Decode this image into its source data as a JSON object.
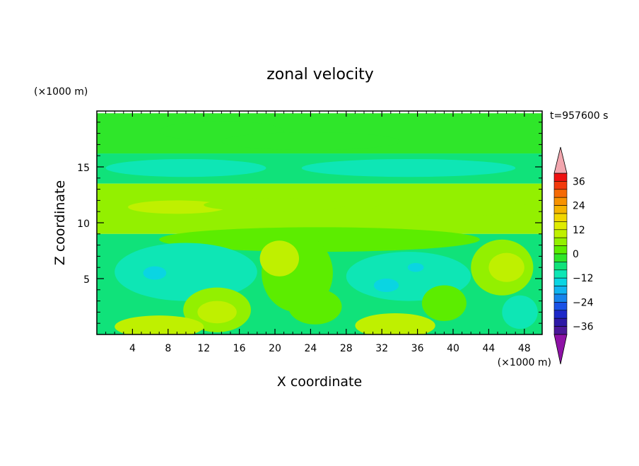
{
  "chart_data": {
    "type": "heatmap",
    "title": "zonal velocity",
    "xlabel": "X coordinate",
    "ylabel": "Z coordinate",
    "x_unit": "(×1000 m)",
    "y_unit": "(×1000 m)",
    "time_label": "t=957600 s",
    "xlim": [
      0,
      50
    ],
    "ylim": [
      0,
      20
    ],
    "x_ticks": [
      4,
      8,
      12,
      16,
      20,
      24,
      28,
      32,
      36,
      40,
      44,
      48
    ],
    "y_ticks": [
      5,
      10,
      15
    ],
    "colorbar": {
      "tick_labels": [
        "36",
        "24",
        "12",
        "0",
        "−12",
        "−24",
        "−36"
      ],
      "tick_values": [
        36,
        24,
        12,
        0,
        -12,
        -24,
        -36
      ],
      "levels_desc": [
        40,
        36,
        32,
        28,
        24,
        20,
        16,
        12,
        8,
        4,
        0,
        -4,
        -8,
        -12,
        -16,
        -20,
        -24,
        -28,
        -32,
        -36,
        -40
      ],
      "colors_desc": [
        "#ee1111",
        "#f23a0c",
        "#f56a05",
        "#f79200",
        "#f5b400",
        "#f1d600",
        "#dfeb00",
        "#bff000",
        "#93f000",
        "#5ced00",
        "#2fe62a",
        "#10e27a",
        "#0ee6b5",
        "#0ad5e2",
        "#10b4f0",
        "#1684ec",
        "#1a52e6",
        "#1d28c8",
        "#2d19a6",
        "#4a1798"
      ],
      "overflow_high_color": "#f2a6ae",
      "overflow_low_color": "#8e12a6"
    },
    "regions": [
      {
        "shape": "band",
        "z_range": [
          16.2,
          19.8
        ],
        "value": 0
      },
      {
        "shape": "band",
        "z_range": [
          13.5,
          16.2
        ],
        "value": -6
      },
      {
        "shape": "band",
        "z_range": [
          9.0,
          13.5
        ],
        "value": 6
      },
      {
        "shape": "band",
        "z_range": [
          0,
          9.0
        ],
        "value": -4
      },
      {
        "shape": "blob",
        "center": [
          14,
          18.2
        ],
        "radii": [
          7,
          0.9
        ],
        "value": -2
      },
      {
        "shape": "blob",
        "center": [
          24,
          17.3
        ],
        "radii": [
          10,
          0.8
        ],
        "value": -2
      },
      {
        "shape": "blob",
        "center": [
          10,
          14.9
        ],
        "radii": [
          9,
          0.8
        ],
        "value": -8
      },
      {
        "shape": "blob",
        "center": [
          35,
          14.9
        ],
        "radii": [
          12,
          0.8
        ],
        "value": -8
      },
      {
        "shape": "blob",
        "center": [
          9,
          11.4
        ],
        "radii": [
          5.5,
          0.6
        ],
        "value": 10
      },
      {
        "shape": "blob",
        "center": [
          20,
          11.6
        ],
        "radii": [
          8,
          0.6
        ],
        "value": 8
      },
      {
        "shape": "blob",
        "center": [
          40,
          11.3
        ],
        "radii": [
          9,
          0.7
        ],
        "value": 8
      },
      {
        "shape": "blob",
        "center": [
          25,
          8.5
        ],
        "radii": [
          18,
          1.1
        ],
        "value": 2
      },
      {
        "shape": "blob",
        "center": [
          10,
          5.6
        ],
        "radii": [
          8,
          2.6
        ],
        "value": -10
      },
      {
        "shape": "blob",
        "center": [
          6.5,
          5.5
        ],
        "radii": [
          1.3,
          0.6
        ],
        "value": -14
      },
      {
        "shape": "blob",
        "center": [
          35,
          5.2
        ],
        "radii": [
          7,
          2.2
        ],
        "value": -10
      },
      {
        "shape": "blob",
        "center": [
          32.5,
          4.4
        ],
        "radii": [
          1.4,
          0.6
        ],
        "value": -14
      },
      {
        "shape": "blob",
        "center": [
          35.8,
          6.0
        ],
        "radii": [
          0.9,
          0.4
        ],
        "value": -14
      },
      {
        "shape": "blob",
        "center": [
          22.5,
          5.5
        ],
        "radii": [
          4,
          3.5
        ],
        "value": 4
      },
      {
        "shape": "blob",
        "center": [
          20.5,
          6.8
        ],
        "radii": [
          2.2,
          1.6
        ],
        "value": 10
      },
      {
        "shape": "blob",
        "center": [
          45.5,
          6.0
        ],
        "radii": [
          3.5,
          2.5
        ],
        "value": 8
      },
      {
        "shape": "blob",
        "center": [
          46,
          6.0
        ],
        "radii": [
          2.0,
          1.3
        ],
        "value": 11
      },
      {
        "shape": "blob",
        "center": [
          13.5,
          2.2
        ],
        "radii": [
          3.8,
          2.0
        ],
        "value": 8
      },
      {
        "shape": "blob",
        "center": [
          13.5,
          2.0
        ],
        "radii": [
          2.2,
          1.0
        ],
        "value": 12
      },
      {
        "shape": "blob",
        "center": [
          7,
          0.7
        ],
        "radii": [
          5,
          1.0
        ],
        "value": 10
      },
      {
        "shape": "blob",
        "center": [
          33.5,
          0.8
        ],
        "radii": [
          4.5,
          1.1
        ],
        "value": 10
      },
      {
        "shape": "blob",
        "center": [
          24.5,
          2.5
        ],
        "radii": [
          3,
          1.6
        ],
        "value": 4
      },
      {
        "shape": "blob",
        "center": [
          39,
          2.8
        ],
        "radii": [
          2.5,
          1.6
        ],
        "value": 2
      },
      {
        "shape": "blob",
        "center": [
          47.5,
          2.0
        ],
        "radii": [
          2.0,
          1.5
        ],
        "value": -10
      }
    ]
  }
}
